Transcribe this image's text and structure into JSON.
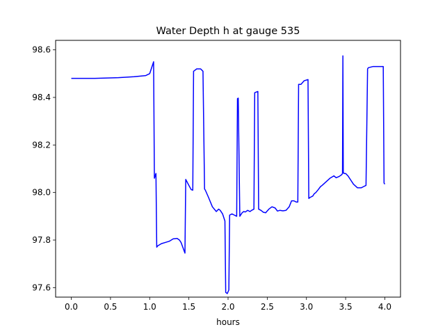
{
  "chart_data": {
    "type": "line",
    "title": "Water Depth h at gauge 535",
    "xlabel": "hours",
    "ylabel": "",
    "xlim": [
      -0.2,
      4.2
    ],
    "ylim": [
      97.56,
      98.64
    ],
    "xticks": [
      0.0,
      0.5,
      1.0,
      1.5,
      2.0,
      2.5,
      3.0,
      3.5,
      4.0
    ],
    "xtick_labels": [
      "0.0",
      "0.5",
      "1.0",
      "1.5",
      "2.0",
      "2.5",
      "3.0",
      "3.5",
      "4.0"
    ],
    "yticks": [
      97.6,
      97.8,
      98.0,
      98.2,
      98.4,
      98.6
    ],
    "ytick_labels": [
      "97.6",
      "97.8",
      "98.0",
      "98.2",
      "98.4",
      "98.6"
    ],
    "grid": false,
    "legend": "none",
    "series": [
      {
        "color": "#0000ff",
        "x": [
          0.0,
          0.3,
          0.6,
          0.8,
          0.95,
          1.0,
          1.03,
          1.05,
          1.06,
          1.07,
          1.08,
          1.09,
          1.1,
          1.15,
          1.2,
          1.25,
          1.3,
          1.35,
          1.38,
          1.4,
          1.45,
          1.46,
          1.5,
          1.53,
          1.55,
          1.56,
          1.6,
          1.65,
          1.68,
          1.7,
          1.71,
          1.75,
          1.8,
          1.85,
          1.88,
          1.9,
          1.93,
          1.96,
          1.97,
          1.99,
          2.01,
          2.02,
          2.05,
          2.08,
          2.11,
          2.12,
          2.13,
          2.15,
          2.16,
          2.18,
          2.2,
          2.22,
          2.25,
          2.28,
          2.3,
          2.33,
          2.34,
          2.38,
          2.39,
          2.42,
          2.45,
          2.48,
          2.52,
          2.56,
          2.6,
          2.63,
          2.66,
          2.7,
          2.74,
          2.78,
          2.81,
          2.84,
          2.87,
          2.89,
          2.9,
          2.93,
          2.97,
          3.02,
          3.03,
          3.05,
          3.08,
          3.1,
          3.12,
          3.15,
          3.18,
          3.2,
          3.25,
          3.3,
          3.35,
          3.38,
          3.42,
          3.45,
          3.46,
          3.465,
          3.47,
          3.48,
          3.5,
          3.53,
          3.56,
          3.6,
          3.65,
          3.7,
          3.73,
          3.76,
          3.78,
          3.79,
          3.85,
          3.9,
          3.96,
          3.98,
          3.99,
          4.0
        ],
        "y": [
          98.48,
          98.48,
          98.483,
          98.487,
          98.492,
          98.5,
          98.53,
          98.55,
          98.06,
          98.07,
          98.08,
          97.77,
          97.775,
          97.785,
          97.79,
          97.795,
          97.805,
          97.807,
          97.8,
          97.79,
          97.745,
          98.055,
          98.03,
          98.012,
          98.01,
          98.51,
          98.52,
          98.52,
          98.51,
          98.015,
          98.01,
          97.98,
          97.94,
          97.92,
          97.93,
          97.925,
          97.91,
          97.88,
          97.58,
          97.575,
          97.59,
          97.905,
          97.91,
          97.905,
          97.9,
          98.395,
          98.397,
          97.9,
          97.905,
          97.915,
          97.92,
          97.918,
          97.925,
          97.92,
          97.925,
          97.93,
          98.42,
          98.425,
          97.93,
          97.925,
          97.917,
          97.915,
          97.93,
          97.94,
          97.935,
          97.922,
          97.925,
          97.923,
          97.925,
          97.94,
          97.965,
          97.965,
          97.96,
          97.96,
          98.455,
          98.455,
          98.47,
          98.475,
          97.975,
          97.98,
          97.985,
          97.995,
          98.0,
          98.012,
          98.025,
          98.03,
          98.045,
          98.06,
          98.07,
          98.062,
          98.068,
          98.075,
          98.08,
          98.575,
          98.085,
          98.08,
          98.08,
          98.07,
          98.055,
          98.035,
          98.02,
          98.02,
          98.025,
          98.03,
          98.52,
          98.525,
          98.53,
          98.53,
          98.53,
          98.53,
          98.04,
          98.035
        ]
      }
    ]
  }
}
